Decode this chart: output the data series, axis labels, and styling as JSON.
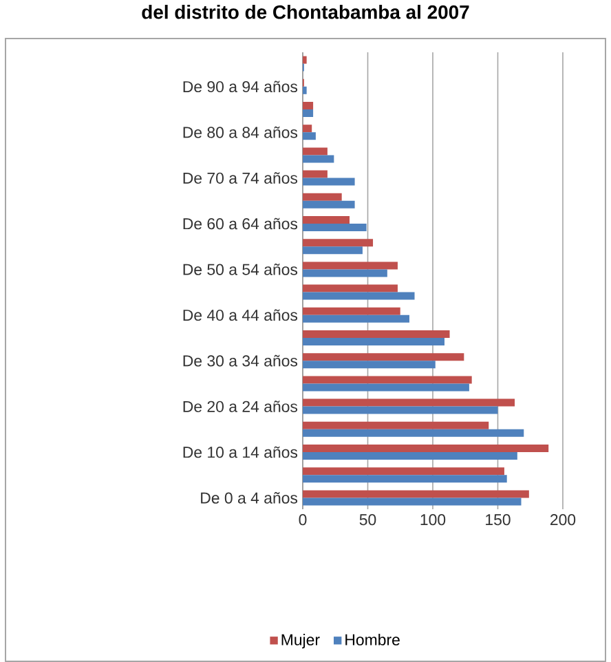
{
  "chart_data": {
    "type": "bar",
    "orientation": "horizontal",
    "title": "del distrito de Chontabamba al 2007",
    "categories": [
      null,
      "De 90 a 94 años",
      null,
      "De 80 a 84 años",
      null,
      "De 70 a 74 años",
      null,
      "De 60 a 64 años",
      null,
      "De 50 a 54 años",
      null,
      "De 40 a 44 años",
      null,
      "De 30 a 34 años",
      null,
      "De 20 a 24 años",
      null,
      "De 10 a 14 años",
      null,
      "De 0 a 4 años"
    ],
    "series": [
      {
        "name": "Mujer",
        "color": "#c0504d",
        "values": [
          3,
          1,
          8,
          7,
          19,
          19,
          30,
          36,
          54,
          73,
          73,
          75,
          113,
          124,
          130,
          163,
          143,
          189,
          155,
          174
        ]
      },
      {
        "name": "Hombre",
        "color": "#4f81bd",
        "values": [
          1,
          3,
          8,
          10,
          24,
          40,
          40,
          49,
          46,
          65,
          86,
          82,
          109,
          102,
          128,
          150,
          170,
          165,
          157,
          168
        ]
      }
    ],
    "xlim": [
      0,
      200
    ],
    "xticks": [
      0,
      50,
      100,
      150,
      200
    ],
    "grid": "x",
    "legend": "bottom"
  }
}
